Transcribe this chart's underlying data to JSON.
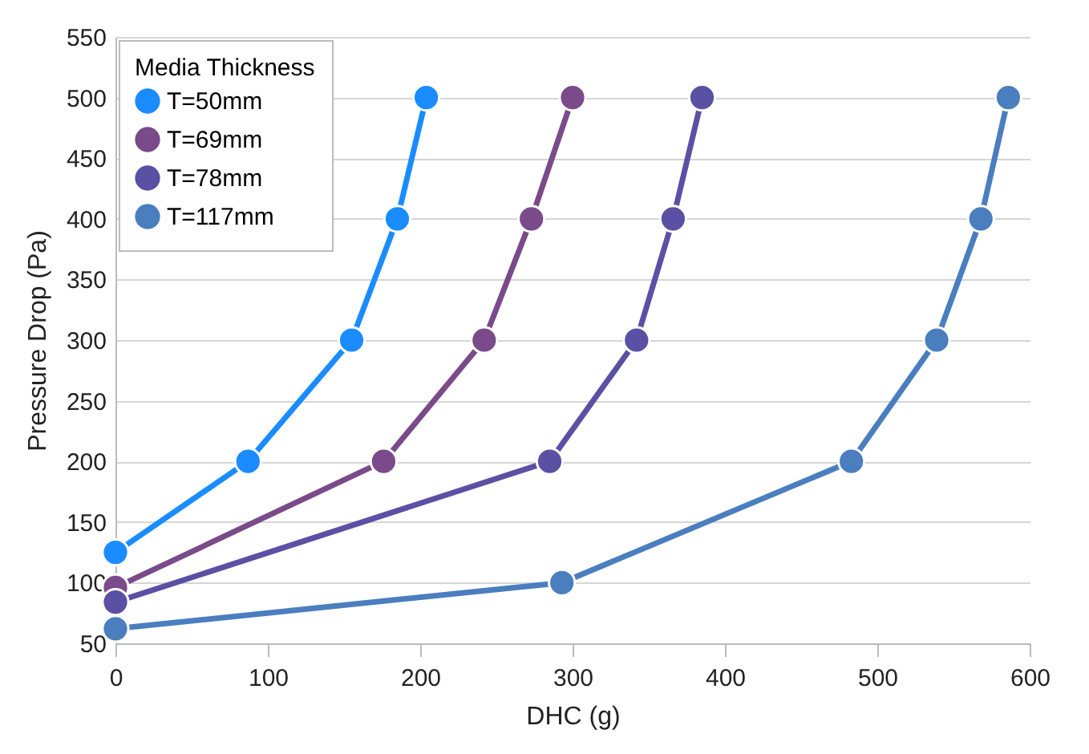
{
  "chart_data": {
    "type": "line",
    "xlabel": "DHC (g)",
    "ylabel": "Pressure Drop (Pa)",
    "legend_title": "Media Thickness",
    "xlim": [
      0,
      600
    ],
    "xticks": [
      0,
      100,
      200,
      300,
      400,
      500,
      600
    ],
    "ylim": [
      50,
      550
    ],
    "yticks": [
      50,
      100,
      150,
      200,
      250,
      300,
      350,
      400,
      450,
      500,
      550
    ],
    "grid": "y",
    "legend": "top left",
    "marker": "circle",
    "line_style": "solid",
    "series": [
      {
        "name": "T=50mm",
        "color": "#1a8cff",
        "x": [
          0,
          87,
          155,
          185,
          204
        ],
        "values": [
          125,
          200,
          300,
          400,
          500
        ]
      },
      {
        "name": "T=69mm",
        "color": "#7a4a8a",
        "x": [
          0,
          176,
          242,
          273,
          300
        ],
        "values": [
          96,
          200,
          300,
          400,
          500
        ]
      },
      {
        "name": "T=78mm",
        "color": "#5a50a4",
        "x": [
          0,
          285,
          342,
          366,
          385
        ],
        "values": [
          84,
          200,
          300,
          400,
          500
        ]
      },
      {
        "name": "T=117mm",
        "color": "#4a7ebf",
        "x": [
          0,
          293,
          483,
          539,
          568,
          586
        ],
        "values": [
          62,
          100,
          200,
          300,
          400,
          500
        ]
      }
    ]
  }
}
